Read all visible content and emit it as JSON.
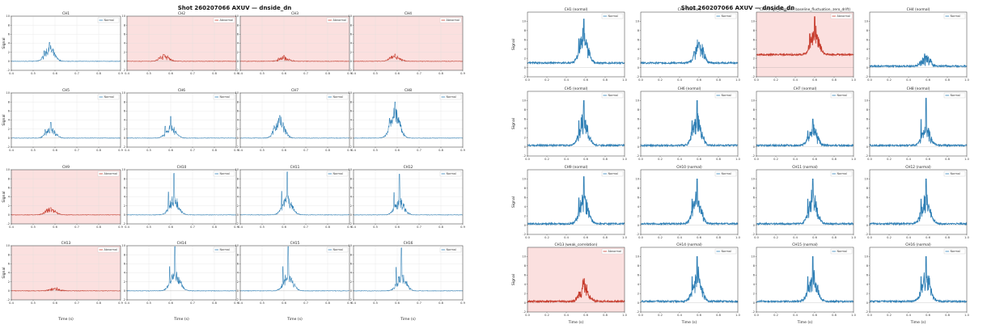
{
  "colors": {
    "normal": "#2f7fb5",
    "abnormal": "#c63b2c",
    "abnormal_bg": "#fbe0df",
    "frame": "#333333",
    "grid": "#dddddd"
  },
  "chart_data": [
    {
      "type": "line",
      "title": "Shot 260207066 AXUV — dnside_dn",
      "xlabel": "Time (s)",
      "ylabel": "Signal",
      "xlim": [
        0.4,
        0.9
      ],
      "ylim": [
        -2,
        10
      ],
      "xticks": [
        "0.4",
        "0.5",
        "0.6",
        "0.7",
        "0.8",
        "0.9"
      ],
      "yticks": [
        "-2",
        "0",
        "2",
        "4",
        "6",
        "8",
        "10"
      ],
      "grid": true,
      "legend_position": "top-right",
      "panels": [
        {
          "title": "CH1",
          "legend": "Normal",
          "abnormal": false,
          "baseline": 0,
          "peak_x": 0.575,
          "peak_y": 4.2,
          "lobe": 2.5
        },
        {
          "title": "CH2",
          "legend": "Abnormal",
          "abnormal": true,
          "baseline": 0,
          "peak_x": 0.57,
          "peak_y": 1.5,
          "lobe": 1.0
        },
        {
          "title": "CH3",
          "legend": "Abnormal",
          "abnormal": true,
          "baseline": 0,
          "peak_x": 0.6,
          "peak_y": 1.3,
          "lobe": 0.6
        },
        {
          "title": "CH4",
          "legend": "Abnormal",
          "abnormal": true,
          "baseline": 0,
          "peak_x": 0.59,
          "peak_y": 1.6,
          "lobe": 1.0
        },
        {
          "title": "CH5",
          "legend": "Normal",
          "abnormal": false,
          "baseline": 0,
          "peak_x": 0.58,
          "peak_y": 3.5,
          "lobe": 1.8
        },
        {
          "title": "CH6",
          "legend": "Normal",
          "abnormal": false,
          "baseline": 0,
          "peak_x": 0.6,
          "peak_y": 4.8,
          "lobe": 2.2
        },
        {
          "title": "CH7",
          "legend": "Normal",
          "abnormal": false,
          "baseline": 0,
          "peak_x": 0.58,
          "peak_y": 5.0,
          "lobe": 3.5
        },
        {
          "title": "CH8",
          "legend": "Normal",
          "abnormal": false,
          "baseline": 0,
          "peak_x": 0.59,
          "peak_y": 8.0,
          "lobe": 5.0
        },
        {
          "title": "CH9",
          "legend": "Abnormal",
          "abnormal": true,
          "baseline": 0,
          "peak_x": 0.58,
          "peak_y": 1.6,
          "lobe": 1.2
        },
        {
          "title": "CH10",
          "legend": "Normal",
          "abnormal": false,
          "baseline": 0,
          "peak_x": 0.615,
          "peak_y": 9.2,
          "lobe": 3.0
        },
        {
          "title": "CH11",
          "legend": "Normal",
          "abnormal": false,
          "baseline": 0,
          "peak_x": 0.615,
          "peak_y": 9.5,
          "lobe": 3.2
        },
        {
          "title": "CH12",
          "legend": "Normal",
          "abnormal": false,
          "baseline": 0,
          "peak_x": 0.61,
          "peak_y": 9.0,
          "lobe": 2.8
        },
        {
          "title": "CH13",
          "legend": "Abnormal",
          "abnormal": true,
          "baseline": 0,
          "peak_x": 0.6,
          "peak_y": 0.6,
          "lobe": 0.4
        },
        {
          "title": "CH14",
          "legend": "Normal",
          "abnormal": false,
          "baseline": 0,
          "peak_x": 0.62,
          "peak_y": 9.8,
          "lobe": 3.4
        },
        {
          "title": "CH15",
          "legend": "Normal",
          "abnormal": false,
          "baseline": 0,
          "peak_x": 0.62,
          "peak_y": 9.8,
          "lobe": 3.0
        },
        {
          "title": "CH16",
          "legend": "Normal",
          "abnormal": false,
          "baseline": 0,
          "peak_x": 0.62,
          "peak_y": 9.5,
          "lobe": 2.8
        }
      ]
    },
    {
      "type": "line",
      "title": "Shot 260207066 AXUV — dnside_dn",
      "xlabel": "Time (s)",
      "ylabel": "Signal",
      "xlim": [
        0.0,
        1.0
      ],
      "ylim": [
        -2,
        12
      ],
      "xticks": [
        "0.0",
        "0.2",
        "0.4",
        "0.6",
        "0.8",
        "1.0"
      ],
      "yticks": [
        "-2",
        "0",
        "2",
        "4",
        "6",
        "8",
        "10"
      ],
      "grid": false,
      "legend_position": "top-right",
      "panels": [
        {
          "title": "CH1 (normal)",
          "legend": "Normal",
          "abnormal": false,
          "baseline": 1.0,
          "peak_x": 0.58,
          "peak_y": 10.5,
          "lobe": 5.0
        },
        {
          "title": "CH2 (normal)",
          "legend": "Normal",
          "abnormal": false,
          "baseline": 1.0,
          "peak_x": 0.6,
          "peak_y": 5.5,
          "lobe": 3.5
        },
        {
          "title": "CH3 (high_baseline, baseline_fluctuation, zero_drift)",
          "legend": "Abnormal",
          "abnormal": true,
          "baseline": 2.8,
          "peak_x": 0.6,
          "peak_y": 11.0,
          "lobe": 4.0
        },
        {
          "title": "CH4 (normal)",
          "legend": "Normal",
          "abnormal": false,
          "baseline": 0.3,
          "peak_x": 0.58,
          "peak_y": 2.5,
          "lobe": 1.5
        },
        {
          "title": "CH5 (normal)",
          "legend": "Normal",
          "abnormal": false,
          "baseline": 0.3,
          "peak_x": 0.58,
          "peak_y": 10.0,
          "lobe": 5.0
        },
        {
          "title": "CH6 (normal)",
          "legend": "Normal",
          "abnormal": false,
          "baseline": 0.3,
          "peak_x": 0.58,
          "peak_y": 10.0,
          "lobe": 5.0
        },
        {
          "title": "CH7 (normal)",
          "legend": "Normal",
          "abnormal": false,
          "baseline": 0.3,
          "peak_x": 0.58,
          "peak_y": 6.0,
          "lobe": 3.0
        },
        {
          "title": "CH8 (normal)",
          "legend": "Normal",
          "abnormal": false,
          "baseline": 0.3,
          "peak_x": 0.58,
          "peak_y": 10.5,
          "lobe": 3.0
        },
        {
          "title": "CH9 (normal)",
          "legend": "Normal",
          "abnormal": false,
          "baseline": 0.3,
          "peak_x": 0.58,
          "peak_y": 10.5,
          "lobe": 5.0
        },
        {
          "title": "CH10 (normal)",
          "legend": "Normal",
          "abnormal": false,
          "baseline": 0.3,
          "peak_x": 0.58,
          "peak_y": 10.0,
          "lobe": 5.0
        },
        {
          "title": "CH11 (normal)",
          "legend": "Normal",
          "abnormal": false,
          "baseline": 0.3,
          "peak_x": 0.58,
          "peak_y": 10.0,
          "lobe": 5.0
        },
        {
          "title": "CH12 (normal)",
          "legend": "Normal",
          "abnormal": false,
          "baseline": 0.3,
          "peak_x": 0.58,
          "peak_y": 10.0,
          "lobe": 5.0
        },
        {
          "title": "CH13 (weak_correlation)",
          "legend": "Abnormal",
          "abnormal": true,
          "baseline": 0.3,
          "peak_x": 0.58,
          "peak_y": 4.0,
          "lobe": 3.0
        },
        {
          "title": "CH14 (normal)",
          "legend": "Normal",
          "abnormal": false,
          "baseline": 0.3,
          "peak_x": 0.58,
          "peak_y": 10.0,
          "lobe": 5.0
        },
        {
          "title": "CH15 (normal)",
          "legend": "Normal",
          "abnormal": false,
          "baseline": 0.3,
          "peak_x": 0.58,
          "peak_y": 10.0,
          "lobe": 5.0
        },
        {
          "title": "CH16 (normal)",
          "legend": "Normal",
          "abnormal": false,
          "baseline": 0.3,
          "peak_x": 0.58,
          "peak_y": 10.0,
          "lobe": 5.0
        }
      ]
    }
  ]
}
